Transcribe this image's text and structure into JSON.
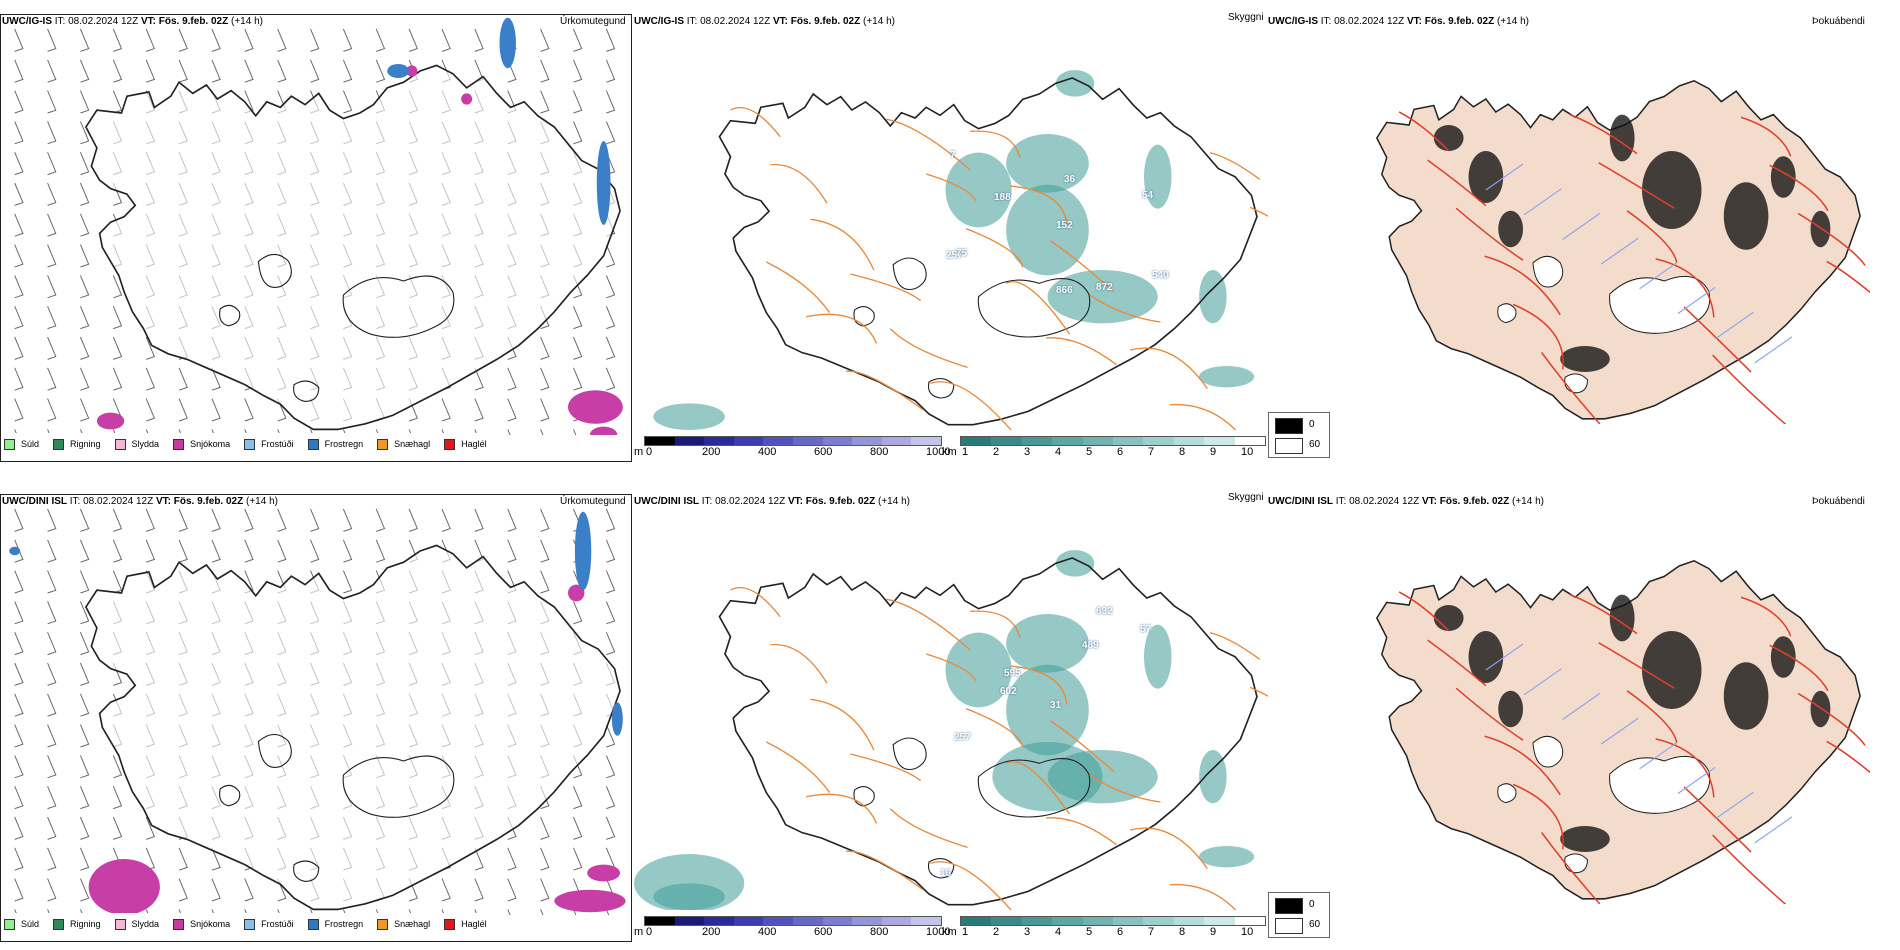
{
  "rows": [
    {
      "model": "UWC/IG-IS",
      "it_label": "IT:",
      "it_value": "08.02.2024 12Z",
      "vt_label": "VT:",
      "vt_value": "Fös. 9.feb. 02Z",
      "lead": "(+14 h)",
      "visibility_labels": [
        "7",
        "188",
        "257",
        "36",
        "152",
        "54",
        "75",
        "866",
        "872",
        "540"
      ]
    },
    {
      "model": "UWC/DINI ISL",
      "it_label": "IT:",
      "it_value": "08.02.2024 12Z",
      "vt_label": "VT:",
      "vt_value": "Fös. 9.feb. 02Z",
      "lead": "(+14 h)",
      "visibility_labels": [
        "632",
        "489",
        "57",
        "595",
        "602",
        "31",
        "257",
        "16"
      ]
    }
  ],
  "panel_titles": {
    "precip": "Úrkomutegund",
    "visibility": "Skyggni",
    "fog": "Þokuábendi"
  },
  "precip_legend": [
    {
      "label": "Súld",
      "color": "#90ee90"
    },
    {
      "label": "Rigning",
      "color": "#2e8b57"
    },
    {
      "label": "Slydda",
      "color": "#f4b6d4"
    },
    {
      "label": "Snjókoma",
      "color": "#c03ca0"
    },
    {
      "label": "Frostúði",
      "color": "#87bfef"
    },
    {
      "label": "Frostregn",
      "color": "#2f78c4"
    },
    {
      "label": "Snæhagl",
      "color": "#f0962a"
    },
    {
      "label": "Haglél",
      "color": "#e01818"
    }
  ],
  "colorbar_m": {
    "unit": "m",
    "ticks": [
      "0",
      "200",
      "400",
      "600",
      "800",
      "1000"
    ],
    "colors": [
      "#000000",
      "#1a1a7a",
      "#2a2a9a",
      "#3d3db0",
      "#5252bf",
      "#6868c8",
      "#7e7ed0",
      "#9494d8",
      "#aaaae0",
      "#c4c4ea"
    ]
  },
  "colorbar_km": {
    "unit": "km",
    "ticks": [
      "1",
      "2",
      "3",
      "4",
      "5",
      "6",
      "7",
      "8",
      "9",
      "10"
    ],
    "colors": [
      "#2a7a7a",
      "#3a8a88",
      "#4a9896",
      "#5ca6a4",
      "#70b4b2",
      "#86c2c0",
      "#9ccfcd",
      "#b4dcda",
      "#cce8e7",
      "#ffffff"
    ]
  },
  "fog_legend": {
    "black_label": "0",
    "white_label": "60"
  },
  "colors": {
    "land_fog": "#f3dccb",
    "roads": "#e8893a",
    "roads_red": "#e0402a",
    "teal": "#3f9c98",
    "magenta": "#c73ea6",
    "blue": "#3a7fc8"
  }
}
